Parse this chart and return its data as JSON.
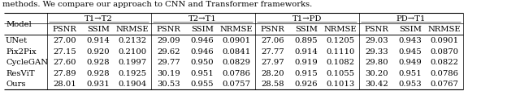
{
  "caption": "methods. We compare our approach to CNN and Transformer frameworks.",
  "col_groups": [
    "T1→T2",
    "T2→T1",
    "T1→PD",
    "PD→T1"
  ],
  "sub_cols": [
    "PSNR",
    "SSIM",
    "NRMSE"
  ],
  "row_labels": [
    "UNet",
    "Pix2Pix",
    "CycleGAN",
    "ResViT",
    "Ours"
  ],
  "data_str": [
    [
      "27.00",
      "0.914",
      "0.2132",
      "29.09",
      "0.946",
      "0.0901",
      "27.06",
      "0.895",
      "0.1205",
      "29.03",
      "0.943",
      "0.0901"
    ],
    [
      "27.15",
      "0.920",
      "0.2100",
      "29.62",
      "0.946",
      "0.0841",
      "27.77",
      "0.914",
      "0.1110",
      "29.33",
      "0.945",
      "0.0870"
    ],
    [
      "27.60",
      "0.928",
      "0.1997",
      "29.77",
      "0.950",
      "0.0829",
      "27.97",
      "0.919",
      "0.1082",
      "29.80",
      "0.949",
      "0.0822"
    ],
    [
      "27.89",
      "0.928",
      "0.1925",
      "30.19",
      "0.951",
      "0.0786",
      "28.20",
      "0.915",
      "0.1055",
      "30.20",
      "0.951",
      "0.0786"
    ],
    [
      "28.01",
      "0.931",
      "0.1904",
      "30.53",
      "0.955",
      "0.0757",
      "28.58",
      "0.926",
      "0.1013",
      "30.42",
      "0.953",
      "0.0767"
    ]
  ],
  "font_size": 7.2,
  "caption_font_size": 7.2,
  "bg_color": "#ffffff",
  "line_color": "#000000"
}
